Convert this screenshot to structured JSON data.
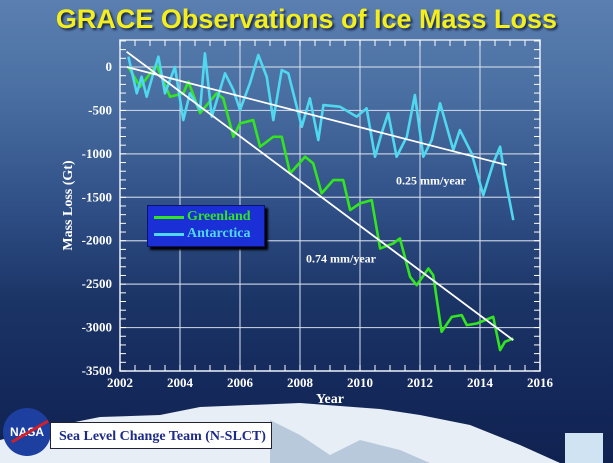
{
  "title": "GRACE Observations of Ice Mass Loss",
  "footer": {
    "logo_text": "NASA",
    "team": "Sea Level Change Team (N-SLCT)"
  },
  "colors": {
    "title": "#f4ee1c",
    "greenland": "#33e51f",
    "antarctica": "#4fd8f0",
    "trend": "#ffffff",
    "legend_bg": "#1a2fd6"
  },
  "chart_data": {
    "type": "line",
    "title": "GRACE Observations of Ice Mass Loss",
    "xlabel": "Year",
    "ylabel": "Mass Loss (Gt)",
    "xlim": [
      2002,
      2016
    ],
    "ylim": [
      -3500,
      300
    ],
    "grid": true,
    "legend": "left",
    "x_ticks": [
      "2002",
      "2004",
      "2006",
      "2008",
      "2010",
      "2012",
      "2014",
      "2016"
    ],
    "y_ticks": [
      "0",
      "-500",
      "-1000",
      "-1500",
      "-2000",
      "-2500",
      "-3000",
      "-3500"
    ],
    "series": [
      {
        "name": "Greenland",
        "color": "#33e51f",
        "x": [
          2002.28,
          2002.67,
          2003.22,
          2003.67,
          2004.11,
          2004.28,
          2004.67,
          2005.22,
          2005.44,
          2005.78,
          2006.0,
          2006.44,
          2006.67,
          2007.11,
          2007.39,
          2007.67,
          2008.17,
          2008.44,
          2008.72,
          2009.11,
          2009.44,
          2009.67,
          2010.0,
          2010.39,
          2010.67,
          2011.11,
          2011.33,
          2011.67,
          2011.89,
          2012.28,
          2012.44,
          2012.72,
          2013.06,
          2013.39,
          2013.56,
          2013.89,
          2014.44,
          2014.67,
          2014.83,
          2015.11
        ],
        "y": [
          0,
          -227,
          23,
          -342,
          -303,
          -169,
          -530,
          -303,
          -360,
          -803,
          -649,
          -611,
          -918,
          -803,
          -803,
          -1225,
          -1033,
          -1110,
          -1455,
          -1302,
          -1302,
          -1647,
          -1570,
          -1532,
          -2089,
          -2031,
          -1974,
          -2416,
          -2512,
          -2320,
          -2396,
          -3049,
          -2877,
          -2857,
          -2972,
          -2953,
          -2877,
          -3260,
          -3164,
          -3125
        ]
      },
      {
        "name": "Antarctica",
        "color": "#4fd8f0",
        "x": [
          2002.28,
          2002.56,
          2002.72,
          2002.89,
          2003.11,
          2003.28,
          2003.5,
          2003.83,
          2004.11,
          2004.33,
          2004.67,
          2004.83,
          2005.06,
          2005.5,
          2005.78,
          2006.0,
          2006.33,
          2006.61,
          2006.89,
          2007.11,
          2007.39,
          2007.61,
          2008.06,
          2008.33,
          2008.61,
          2008.78,
          2009.33,
          2009.89,
          2010.22,
          2010.5,
          2010.72,
          2010.94,
          2011.22,
          2011.56,
          2011.83,
          2012.11,
          2012.39,
          2012.67,
          2013.11,
          2013.33,
          2013.72,
          2014.11,
          2014.44,
          2014.67,
          2014.83,
          2015.11
        ],
        "y": [
          119,
          -303,
          -112,
          -342,
          -73,
          119,
          -303,
          0,
          -611,
          -303,
          -495,
          157,
          -572,
          -73,
          -265,
          -495,
          -188,
          138,
          -112,
          -611,
          -35,
          -73,
          -688,
          -361,
          -841,
          -438,
          -457,
          -572,
          -476,
          -1033,
          -764,
          -534,
          -1033,
          -803,
          -323,
          -1033,
          -841,
          -418,
          -956,
          -726,
          -994,
          -1475,
          -1110,
          -918,
          -1264,
          -1763
        ]
      }
    ],
    "trend_lines": [
      {
        "series": "Greenland",
        "x": [
          2002.22,
          2015.11
        ],
        "y": [
          176,
          -3145
        ],
        "label": "0.74 mm/year",
        "label_at": [
          2008.2,
          -2250
        ]
      },
      {
        "series": "Antarctica",
        "x": [
          2002.22,
          2014.89
        ],
        "y": [
          0,
          -1129
        ],
        "label": "0.25 mm/year",
        "label_at": [
          2011.2,
          -1350
        ]
      }
    ]
  }
}
